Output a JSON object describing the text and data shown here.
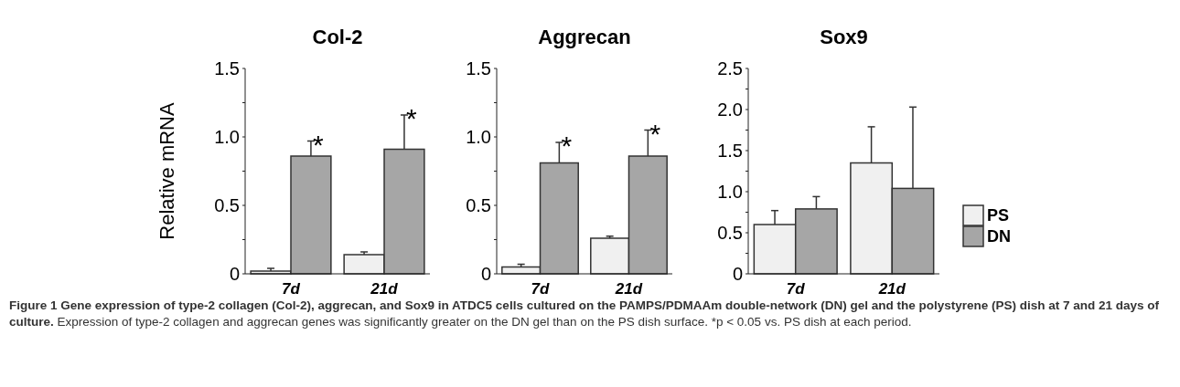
{
  "chart_data": [
    {
      "type": "bar",
      "title": "Col-2",
      "ylabel": "Relative mRNA",
      "categories": [
        "7d",
        "21d"
      ],
      "series": [
        {
          "color": "#f0f0f0",
          "values": [
            0.02,
            0.14
          ],
          "errors": [
            0.02,
            0.02
          ]
        },
        {
          "color": "#a6a6a6",
          "values": [
            0.86,
            0.91
          ],
          "errors": [
            0.11,
            0.25
          ]
        }
      ],
      "ylim": [
        0,
        1.5
      ],
      "yticks": [
        {
          "value": 0,
          "label": "0"
        },
        {
          "value": 0.25,
          "label": null
        },
        {
          "value": 0.5,
          "label": "0.5"
        },
        {
          "value": 0.75,
          "label": null
        },
        {
          "value": 1,
          "label": "1.0"
        },
        {
          "value": 1.25,
          "label": null
        },
        {
          "value": 1.5,
          "label": "1.5"
        }
      ],
      "annotations": [
        "*",
        "*"
      ]
    },
    {
      "type": "bar",
      "title": "Aggrecan",
      "categories": [
        "7d",
        "21d"
      ],
      "series": [
        {
          "color": "#f0f0f0",
          "values": [
            0.05,
            0.26
          ],
          "errors": [
            0.02,
            0.015
          ]
        },
        {
          "color": "#a6a6a6",
          "values": [
            0.81,
            0.86
          ],
          "errors": [
            0.15,
            0.19
          ]
        }
      ],
      "ylim": [
        0,
        1.5
      ],
      "yticks": [
        {
          "value": 0,
          "label": "0"
        },
        {
          "value": 0.25,
          "label": null
        },
        {
          "value": 0.5,
          "label": "0.5"
        },
        {
          "value": 0.75,
          "label": null
        },
        {
          "value": 1,
          "label": "1.0"
        },
        {
          "value": 1.25,
          "label": null
        },
        {
          "value": 1.5,
          "label": "1.5"
        }
      ],
      "annotations": [
        "*",
        "*"
      ]
    },
    {
      "type": "bar",
      "title": "Sox9",
      "categories": [
        "7d",
        "21d"
      ],
      "series": [
        {
          "name": "PS",
          "color": "#f0f0f0",
          "values": [
            0.6,
            1.35
          ],
          "errors": [
            0.17,
            0.44
          ]
        },
        {
          "name": "DN",
          "color": "#a6a6a6",
          "values": [
            0.79,
            1.04
          ],
          "errors": [
            0.15,
            0.99
          ]
        }
      ],
      "ylim": [
        0,
        2.5
      ],
      "yticks": [
        {
          "value": 0,
          "label": "0"
        },
        {
          "value": 0.25,
          "label": null
        },
        {
          "value": 0.5,
          "label": "0.5"
        },
        {
          "value": 0.75,
          "label": null
        },
        {
          "value": 1,
          "label": "1.0"
        },
        {
          "value": 1.25,
          "label": null
        },
        {
          "value": 1.5,
          "label": "1.5"
        },
        {
          "value": 1.75,
          "label": null
        },
        {
          "value": 2,
          "label": "2.0"
        },
        {
          "value": 2.25,
          "label": null
        },
        {
          "value": 2.5,
          "label": "2.5"
        }
      ],
      "legend": "right",
      "annotations": [
        "Figure 1 Gene expression of type-2 collagen (Col-2), aggrecan, and Sox9 in ATDC5 cells cultured on the PAMPS/PDMAAm double-network (DN) gel and the polystyrene (PS) dish at 7 and 21 days of culture.",
        "Expression of type-2 collagen and aggrecan genes was significantly greater on the DN gel than on the PS dish surface. *p < 0.05 vs. PS dish at each period."
      ]
    }
  ]
}
